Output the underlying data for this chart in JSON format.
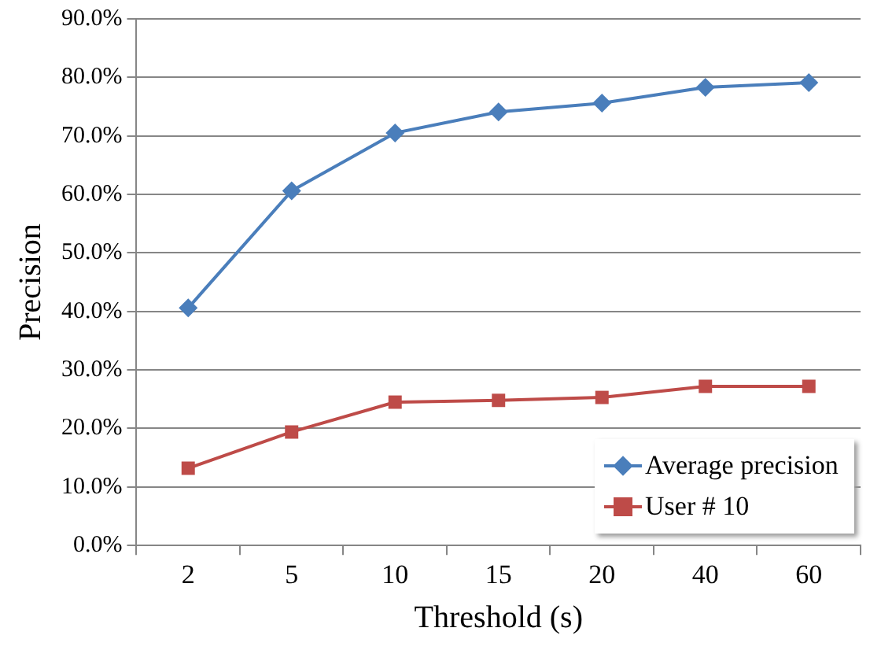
{
  "chart_data": {
    "type": "line",
    "xlabel": "Threshold (s)",
    "ylabel": "Precision",
    "categories": [
      "2",
      "5",
      "10",
      "15",
      "20",
      "40",
      "60"
    ],
    "series": [
      {
        "name": "Average precision",
        "color": "#4a7ebb",
        "marker": "diamond",
        "values": [
          40.6,
          60.6,
          70.5,
          74.1,
          75.6,
          78.3,
          79.1
        ]
      },
      {
        "name": "User # 10",
        "color": "#be4b48",
        "marker": "square",
        "values": [
          13.2,
          19.4,
          24.5,
          24.8,
          25.3,
          27.2,
          27.2
        ]
      }
    ],
    "ylim": [
      0,
      90
    ],
    "yticks": [
      {
        "value": 0,
        "label": "0.0%"
      },
      {
        "value": 10,
        "label": "10.0%"
      },
      {
        "value": 20,
        "label": "20.0%"
      },
      {
        "value": 30,
        "label": "30.0%"
      },
      {
        "value": 40,
        "label": "40.0%"
      },
      {
        "value": 50,
        "label": "50.0%"
      },
      {
        "value": 60,
        "label": "60.0%"
      },
      {
        "value": 70,
        "label": "70.0%"
      },
      {
        "value": 80,
        "label": "80.0%"
      },
      {
        "value": 90,
        "label": "90.0%"
      }
    ],
    "grid": "y",
    "legend": "bottom right",
    "line_style": "solid"
  }
}
